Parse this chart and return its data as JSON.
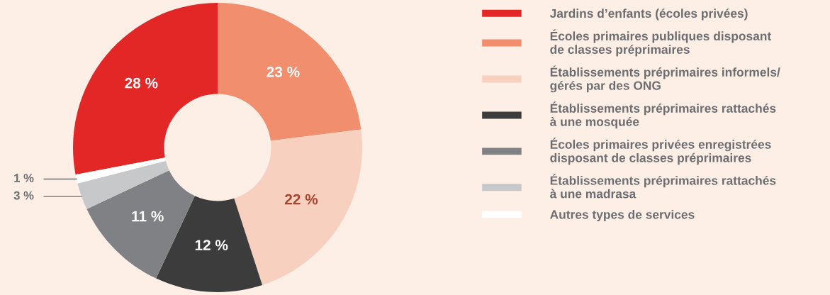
{
  "chart_data": {
    "type": "donut",
    "categories": [
      "Jardins d’enfants (écoles privées)",
      "Écoles primaires publiques disposant\nde classes préprimaires",
      "Établissements préprimaires informels/\ngérés par des ONG",
      "Établissements préprimaires rattachés\nà une mosquée",
      "Écoles primaires privées enregistrées\ndisposant de classes préprimaires",
      "Établissements préprimaires rattachés\nà une madrasa",
      "Autres types de services"
    ],
    "values": [
      28,
      23,
      22,
      12,
      11,
      3,
      1
    ],
    "colors": [
      "#e22726",
      "#f08e6e",
      "#f8d0c0",
      "#3c3c3c",
      "#808184",
      "#c6c8ca",
      "#ffffff"
    ],
    "value_labels": [
      "28 %",
      "23 %",
      "22 %",
      "12 %",
      "11 %",
      "3 %",
      "1 %"
    ],
    "legend": "right"
  }
}
